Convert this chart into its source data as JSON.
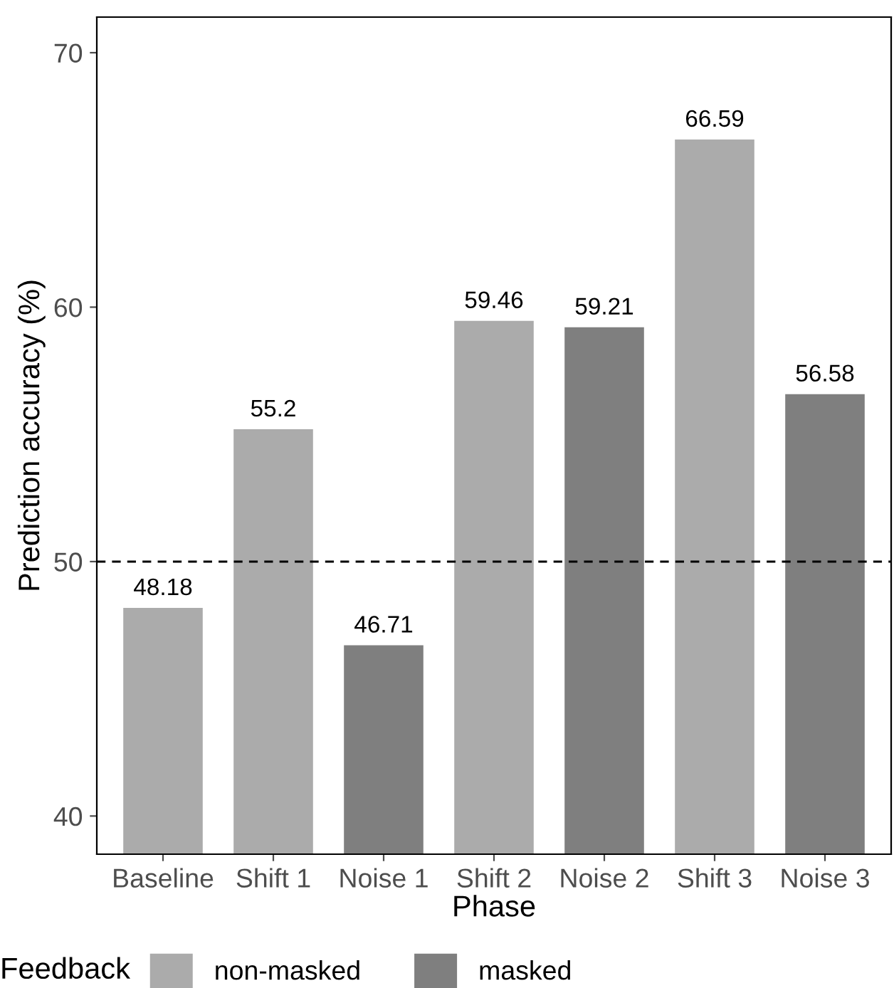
{
  "chart_data": {
    "type": "bar",
    "xlabel": "Phase",
    "ylabel": "Prediction accuracy (%)",
    "legend_title": "Feedback",
    "categories": [
      "Baseline",
      "Shift 1",
      "Noise 1",
      "Shift 2",
      "Noise 2",
      "Shift 3",
      "Noise 3"
    ],
    "series": [
      {
        "name": "non-masked",
        "color": "#ababab",
        "values": [
          48.18,
          55.2,
          null,
          59.46,
          null,
          66.59,
          null
        ]
      },
      {
        "name": "masked",
        "color": "#7f7f7f",
        "values": [
          null,
          null,
          46.71,
          null,
          59.21,
          null,
          56.58
        ]
      }
    ],
    "ylim": [
      38.5,
      71.4
    ],
    "yticks": [
      40,
      50,
      60,
      70
    ],
    "ref_lines": [
      {
        "axis": "y",
        "value": 50,
        "color": "#000000",
        "line_style": "dashed"
      }
    ],
    "data_labels": true,
    "grid": false,
    "legend": "bottom"
  }
}
